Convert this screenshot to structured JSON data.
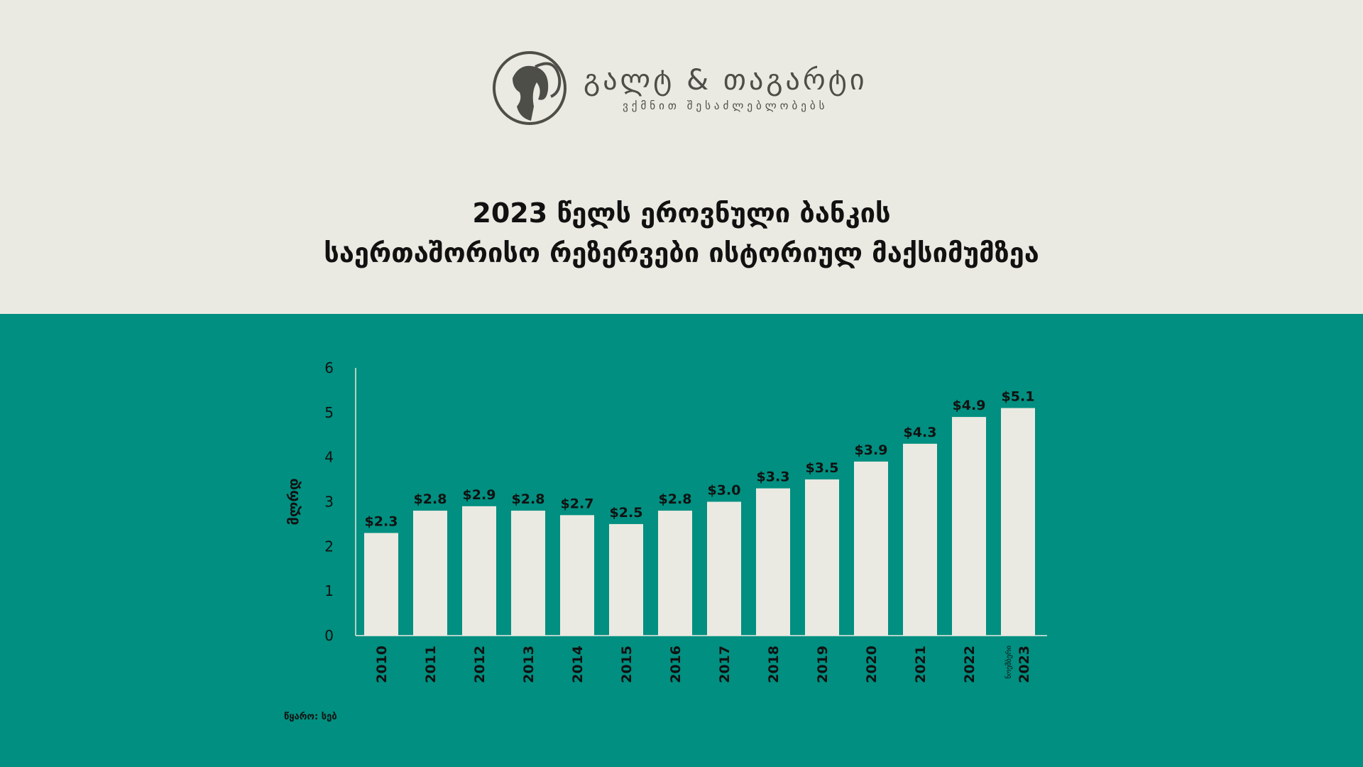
{
  "logo": {
    "name": "გალტ & თაგარტი",
    "tagline": "ვქმნით შესაძლებლობებს"
  },
  "title": {
    "line1": "2023 წელს ეროვნული ბანკის",
    "line2": "საერთაშორისო რეზერვები ისტორიულ მაქსიმუმზეა"
  },
  "colors": {
    "top_bg": "#ebeae2",
    "bottom_bg": "#008f80",
    "bar": "#ebeae2",
    "text": "#111111"
  },
  "chart_data": {
    "type": "bar",
    "ylabel": "მლრდ",
    "ylim": [
      0,
      6
    ],
    "yticks": [
      "0",
      "1",
      "2",
      "3",
      "4",
      "5",
      "6"
    ],
    "categories": [
      "2010",
      "2011",
      "2012",
      "2013",
      "2014",
      "2015",
      "2016",
      "2017",
      "2018",
      "2019",
      "2020",
      "2021",
      "2022",
      "2023"
    ],
    "category_sublabels": {
      "2023": "ნოემბერი"
    },
    "values": [
      2.3,
      2.8,
      2.9,
      2.8,
      2.7,
      2.5,
      2.8,
      3.0,
      3.3,
      3.5,
      3.9,
      4.3,
      4.9,
      5.1
    ],
    "data_labels": [
      "$2.3",
      "$2.8",
      "$2.9",
      "$2.8",
      "$2.7",
      "$2.5",
      "$2.8",
      "$3.0",
      "$3.3",
      "$3.5",
      "$3.9",
      "$4.3",
      "$4.9",
      "$5.1"
    ],
    "grid": false
  },
  "source": "წყარო: სებ"
}
